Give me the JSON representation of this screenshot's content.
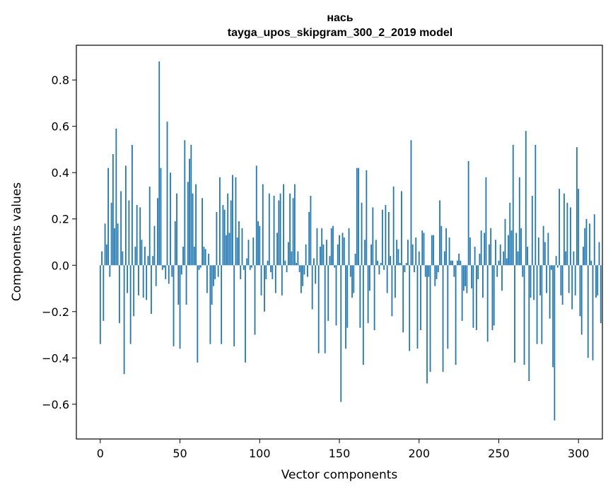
{
  "chart_data": {
    "type": "bar",
    "title": "нась",
    "subtitle": "tayga_upos_skipgram_300_2_2019 model",
    "xlabel": "Vector components",
    "ylabel": "Components values",
    "xlim": [
      -15,
      315
    ],
    "ylim": [
      -0.75,
      0.95
    ],
    "xticks": [
      0,
      50,
      100,
      150,
      200,
      250,
      300
    ],
    "yticks": [
      -0.6,
      -0.4,
      -0.2,
      0.0,
      0.2,
      0.4,
      0.6,
      0.8
    ],
    "xtick_labels": [
      "0",
      "50",
      "100",
      "150",
      "200",
      "250",
      "300"
    ],
    "ytick_labels": [
      "−0.6",
      "−0.4",
      "−0.2",
      "0.0",
      "0.2",
      "0.4",
      "0.6",
      "0.8"
    ],
    "bar_color": "#1f77b4",
    "values": [
      -0.34,
      0.06,
      -0.24,
      0.18,
      0.09,
      0.42,
      -0.05,
      0.27,
      0.48,
      0.16,
      0.59,
      0.18,
      -0.25,
      0.32,
      0.06,
      -0.47,
      0.43,
      -0.12,
      0.28,
      -0.34,
      0.52,
      -0.22,
      0.08,
      0.26,
      -0.13,
      0.25,
      0.11,
      -0.14,
      0.08,
      -0.15,
      0.04,
      0.34,
      -0.21,
      0.04,
      0.17,
      -0.09,
      0.29,
      0.88,
      0.42,
      -0.02,
      -0.01,
      -0.06,
      0.62,
      -0.08,
      0.4,
      -0.05,
      -0.35,
      0.19,
      0.31,
      -0.17,
      -0.36,
      -0.04,
      0.08,
      0.54,
      -0.17,
      0.36,
      0.46,
      0.52,
      0.31,
      0.08,
      0.35,
      -0.42,
      -0.02,
      -0.01,
      0.29,
      0.08,
      0.07,
      -0.12,
      0.05,
      -0.34,
      -0.17,
      -0.09,
      -0.06,
      0.23,
      -0.05,
      0.38,
      -0.34,
      0.26,
      0.24,
      0.13,
      0.31,
      0.14,
      0.28,
      0.39,
      -0.35,
      0.38,
      0.12,
      0.19,
      -0.06,
      0.16,
      -0.02,
      -0.42,
      0.03,
      0.11,
      -0.02,
      -0.01,
      0.12,
      -0.3,
      0.43,
      0.19,
      0.17,
      -0.13,
      0.35,
      -0.2,
      -0.06,
      0.02,
      0.31,
      -0.03,
      -0.06,
      0.3,
      -0.12,
      0.14,
      0.28,
      0.31,
      -0.13,
      0.35,
      0.02,
      -0.03,
      0.1,
      0.31,
      0.06,
      0.29,
      0.35,
      0.01,
      0.06,
      -0.03,
      -0.12,
      -0.09,
      -0.04,
      0.09,
      -0.05,
      0.23,
      0.3,
      -0.19,
      0.03,
      -0.08,
      0.16,
      -0.38,
      0.08,
      0.16,
      0.09,
      -0.38,
      0.11,
      -0.24,
      0.04,
      0.16,
      0.17,
      -0.01,
      -0.26,
      0.09,
      0.13,
      -0.59,
      0.14,
      0.12,
      -0.36,
      -0.27,
      0.16,
      -0.05,
      -0.14,
      -0.12,
      0.05,
      0.42,
      0.42,
      -0.27,
      0.27,
      -0.43,
      0.11,
      0.41,
      -0.25,
      -0.11,
      0.09,
      0.25,
      -0.28,
      0.11,
      0.02,
      -0.04,
      0.01,
      0.24,
      -0.02,
      0.26,
      -0.12,
      0.23,
      0.04,
      -0.22,
      0.34,
      -0.14,
      0.11,
      0.07,
      0.01,
      0.32,
      -0.29,
      -0.03,
      0.01,
      0.11,
      -0.37,
      0.54,
      0.09,
      -0.03,
      0.12,
      -0.36,
      0.06,
      -0.28,
      0.15,
      0.14,
      -0.05,
      -0.51,
      -0.05,
      -0.46,
      0.13,
      0.13,
      -0.09,
      -0.06,
      -0.03,
      0.28,
      0.17,
      -0.46,
      0.06,
      0.16,
      -0.36,
      0.12,
      0.02,
      0.02,
      -0.05,
      -0.43,
      0.02,
      0.05,
      0.02,
      -0.24,
      -0.11,
      -0.09,
      -0.12,
      0.45,
      0.12,
      -0.1,
      -0.27,
      0.08,
      -0.28,
      -0.06,
      0.05,
      0.15,
      -0.14,
      0.14,
      0.38,
      -0.33,
      0.09,
      0.16,
      -0.28,
      -0.26,
      0.11,
      -0.05,
      0.02,
      0.09,
      -0.11,
      0.06,
      0.2,
      0.03,
      0.13,
      0.27,
      0.15,
      0.52,
      -0.42,
      0.14,
      0.06,
      0.38,
      0.16,
      -0.05,
      -0.43,
      0.58,
      0.08,
      -0.5,
      -0.14,
      0.3,
      -0.15,
      0.52,
      -0.34,
      0.12,
      -0.13,
      -0.34,
      0.17,
      0.1,
      -0.12,
      0.14,
      -0.23,
      -0.02,
      -0.44,
      -0.67,
      0.04,
      -0.01,
      0.33,
      -0.13,
      -0.17,
      0.31,
      0.06,
      0.27,
      -0.12,
      0.25,
      -0.19,
      0.06,
      -0.13,
      0.51,
      0.33,
      -0.22,
      -0.3,
      0.08,
      0.16,
      0.2,
      -0.4,
      0.18,
      0.02,
      -0.41,
      0.22,
      -0.14,
      -0.13,
      0.1,
      -0.25
    ]
  }
}
